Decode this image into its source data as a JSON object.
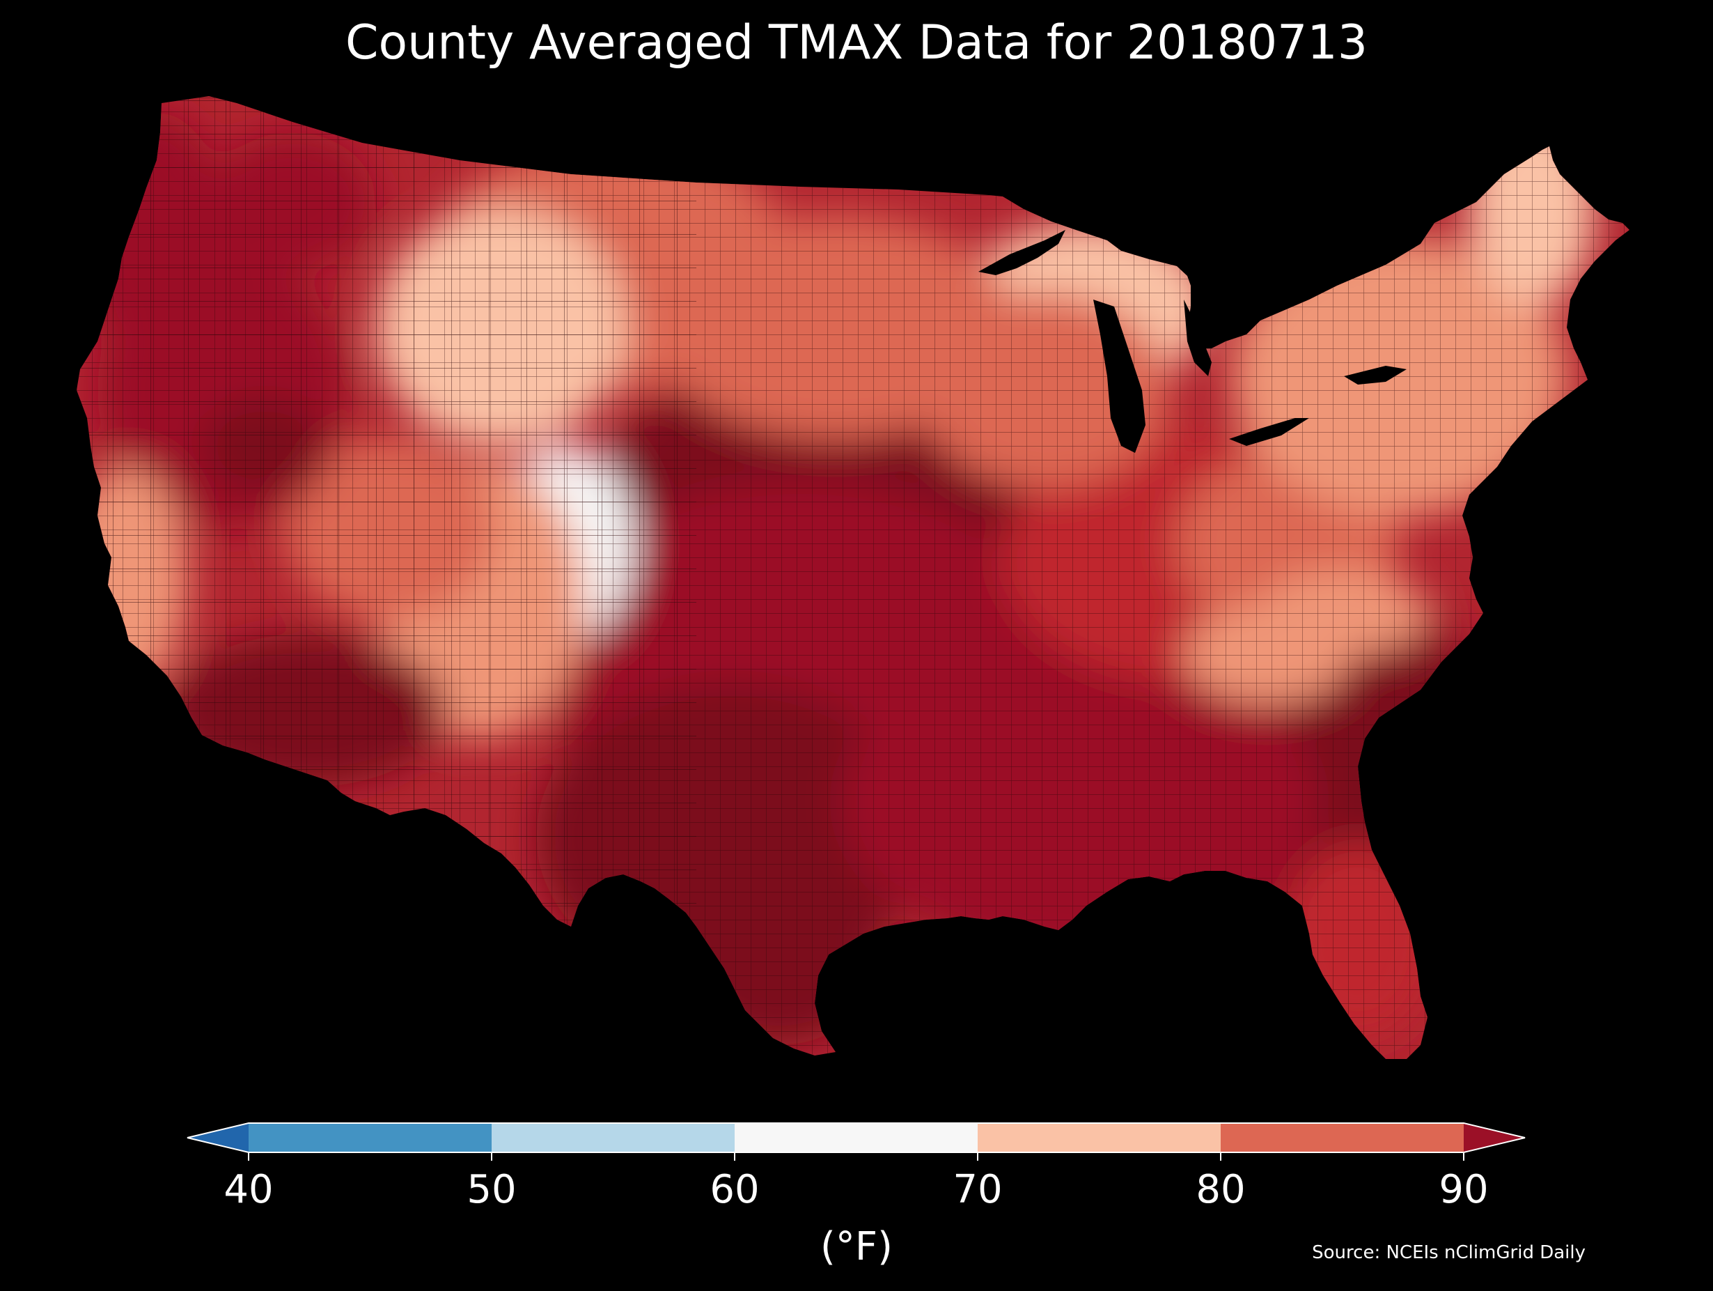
{
  "title": "County Averaged TMAX Data for 20180713",
  "source": "Source: NCEIs nClimGrid Daily",
  "colorbar": {
    "unit_label": "(°F)",
    "ticks": [
      "40",
      "50",
      "60",
      "70",
      "80",
      "90"
    ],
    "bins": [
      {
        "range": "<40",
        "color": "#2166ac"
      },
      {
        "range": "40-50",
        "color": "#4393c3"
      },
      {
        "range": "50-60",
        "color": "#b5d7e9"
      },
      {
        "range": "60-70",
        "color": "#f7f7f7"
      },
      {
        "range": "70-80",
        "color": "#fac2a6"
      },
      {
        "range": "80-90",
        "color": "#dd6753"
      },
      {
        "range": ">90",
        "color": "#9b1027"
      }
    ]
  },
  "map": {
    "region": "Contiguous United States",
    "unit": "county",
    "variable": "TMAX",
    "date": "20180713",
    "background_color": "#000000",
    "county_border_color": "#3a0a0a",
    "heat_colors": {
      "hottest": "#7b0a1f",
      "hot": "#9b1027",
      "warm": "#c0282f",
      "mild": "#dd6753",
      "cool": "#ef9677",
      "coolest": "#fac2a6",
      "near_white": "#f7f7f7"
    }
  }
}
